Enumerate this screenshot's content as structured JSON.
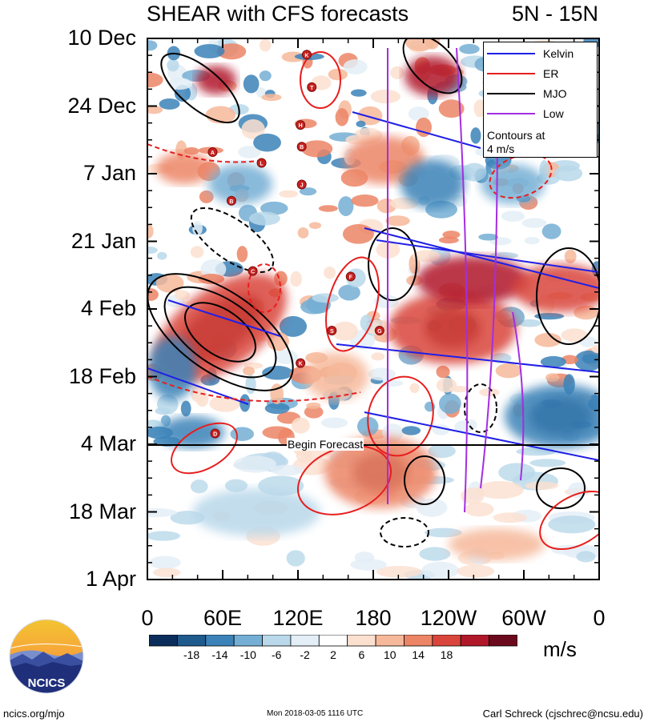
{
  "header": {
    "title": "SHEAR with CFS forecasts",
    "region": "5N - 15N"
  },
  "chart_data": {
    "type": "heatmap",
    "title": "SHEAR with CFS forecasts",
    "region": "5N - 15N",
    "y_axis": {
      "labels": [
        "10 Dec",
        "24 Dec",
        "7 Jan",
        "21 Jan",
        "4 Feb",
        "18 Feb",
        "4 Mar",
        "18 Mar",
        "1 Apr"
      ]
    },
    "x_axis": {
      "labels": [
        "0",
        "60E",
        "120E",
        "180",
        "120W",
        "60W",
        "0"
      ],
      "range_deg": [
        0,
        360
      ]
    },
    "colorbar": {
      "unit": "m/s",
      "labels": [
        "-18",
        "-14",
        "-10",
        "-6",
        "-2",
        "2",
        "6",
        "10",
        "14",
        "18"
      ],
      "colors": [
        "#0b2d5c",
        "#1f5a8c",
        "#3b82b8",
        "#74aed4",
        "#b9d8ea",
        "#e3eef6",
        "#ffffff",
        "#fbe0d0",
        "#f6b89a",
        "#ec8566",
        "#d9453a",
        "#b0182a",
        "#6b0a1c"
      ]
    },
    "legend": {
      "items": [
        {
          "label": "Kelvin",
          "color": "#1f1fe6"
        },
        {
          "label": "ER",
          "color": "#e61e1e"
        },
        {
          "label": "MJO",
          "color": "#000000"
        },
        {
          "label": "Low",
          "color": "#a32ee0"
        }
      ],
      "note": [
        "Contours at",
        "4 m/s"
      ],
      "position": "top-right"
    },
    "forecast_marker": {
      "label": "Begin Forecast",
      "date": "4 Mar"
    },
    "storm_markers": [
      {
        "letter": "K",
        "lon": 127,
        "date_frac": 0.03
      },
      {
        "letter": "T",
        "lon": 131,
        "date_frac": 0.09
      },
      {
        "letter": "H",
        "lon": 122,
        "date_frac": 0.16
      },
      {
        "letter": "B",
        "lon": 123,
        "date_frac": 0.2
      },
      {
        "letter": "A",
        "lon": 52,
        "date_frac": 0.21
      },
      {
        "letter": "L",
        "lon": 91,
        "date_frac": 0.23
      },
      {
        "letter": "J",
        "lon": 123,
        "date_frac": 0.27
      },
      {
        "letter": "B",
        "lon": 67,
        "date_frac": 0.3
      },
      {
        "letter": "C",
        "lon": 84,
        "date_frac": 0.43
      },
      {
        "letter": "F",
        "lon": 162,
        "date_frac": 0.44
      },
      {
        "letter": "S",
        "lon": 147,
        "date_frac": 0.54
      },
      {
        "letter": "G",
        "lon": 185,
        "date_frac": 0.54
      },
      {
        "letter": "K",
        "lon": 122,
        "date_frac": 0.6
      },
      {
        "letter": "D",
        "lon": 54,
        "date_frac": 0.73
      }
    ]
  },
  "footer": {
    "site": "ncics.org/mjo",
    "timestamp": "Mon 2018-03-05 1116 UTC",
    "author": "Carl Schreck (cjschrec@ncsu.edu)",
    "logo_text": "NCICS"
  }
}
